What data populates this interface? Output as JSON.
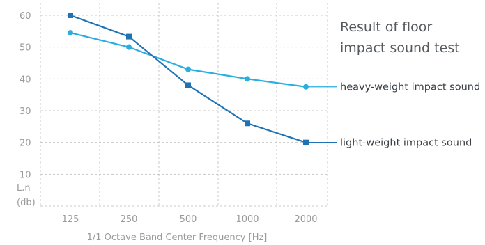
{
  "chart_data": {
    "type": "line",
    "title_lines": [
      "Result of floor",
      "impact sound test"
    ],
    "xlabel": "1/1 Octave Band Center Frequency [Hz]",
    "ylabel_lines": [
      "L.n",
      "(db)"
    ],
    "categories": [
      "125",
      "250",
      "500",
      "1000",
      "2000"
    ],
    "yticks": [
      10,
      20,
      30,
      40,
      50,
      60
    ],
    "ylim": [
      0,
      62
    ],
    "grid": true,
    "series": [
      {
        "name": "heavy-weight impact sound",
        "values": [
          54.5,
          50,
          43,
          40,
          37.5
        ],
        "color": "#29aee0",
        "marker": "circle"
      },
      {
        "name": "light-weight impact sound",
        "values": [
          60,
          53.3,
          38,
          26,
          20
        ],
        "color": "#1f73b5",
        "marker": "square"
      }
    ]
  }
}
